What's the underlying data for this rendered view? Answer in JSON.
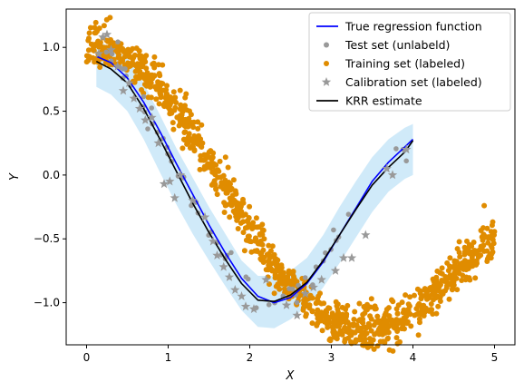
{
  "chart_data": {
    "type": "scatter",
    "xlabel": "X",
    "ylabel": "Y",
    "xlim": [
      -0.25,
      5.25
    ],
    "ylim": [
      -1.33,
      1.3
    ],
    "xticks": [
      0,
      1,
      2,
      3,
      4,
      5
    ],
    "yticks": [
      -1.0,
      -0.5,
      0.0,
      0.5,
      1.0
    ],
    "xtick_labels": [
      "0",
      "1",
      "2",
      "3",
      "4",
      "5"
    ],
    "ytick_labels": [
      "−1.0",
      "−0.5",
      "0.0",
      "0.5",
      "1.0"
    ],
    "grid": false,
    "legend": "top-right",
    "legend_entries": [
      {
        "label": "True regression function",
        "kind": "line",
        "color": "#0000ff"
      },
      {
        "label": "Test set (unlabeld)",
        "kind": "circle",
        "color": "#999999"
      },
      {
        "label": "Training set (labeled)",
        "kind": "circle",
        "color": "#e08c00"
      },
      {
        "label": "Calibration set (labeled)",
        "kind": "star",
        "color": "#999999"
      },
      {
        "label": "KRR estimate",
        "kind": "line",
        "color": "#000000"
      }
    ],
    "series": [
      {
        "name": "True regression function",
        "kind": "line",
        "color": "#0000ff",
        "x": [
          0.12,
          0.3,
          0.5,
          0.7,
          0.9,
          1.1,
          1.3,
          1.5,
          1.7,
          1.9,
          2.1,
          2.3,
          2.5,
          2.7,
          2.9,
          3.1,
          3.3,
          3.5,
          3.7,
          3.9,
          4.0
        ],
        "y": [
          0.93,
          0.88,
          0.76,
          0.57,
          0.34,
          0.09,
          -0.15,
          -0.39,
          -0.61,
          -0.81,
          -0.95,
          -1.0,
          -0.96,
          -0.85,
          -0.68,
          -0.47,
          -0.26,
          -0.05,
          0.1,
          0.22,
          0.28
        ]
      },
      {
        "name": "KRR estimate",
        "kind": "line",
        "color": "#000000",
        "x": [
          0.12,
          0.3,
          0.5,
          0.7,
          0.9,
          1.1,
          1.3,
          1.5,
          1.7,
          1.9,
          2.1,
          2.3,
          2.5,
          2.7,
          2.9,
          3.1,
          3.3,
          3.5,
          3.7,
          3.9,
          4.0
        ],
        "y": [
          0.89,
          0.83,
          0.72,
          0.52,
          0.28,
          0.03,
          -0.22,
          -0.45,
          -0.66,
          -0.85,
          -0.98,
          -0.99,
          -0.94,
          -0.84,
          -0.67,
          -0.47,
          -0.27,
          -0.08,
          0.06,
          0.18,
          0.27
        ]
      },
      {
        "name": "Prediction band",
        "kind": "band",
        "color": "#8fcdf0",
        "x": [
          0.12,
          0.3,
          0.5,
          0.7,
          0.9,
          1.1,
          1.3,
          1.5,
          1.7,
          1.9,
          2.1,
          2.3,
          2.5,
          2.7,
          2.9,
          3.1,
          3.3,
          3.5,
          3.7,
          3.9,
          4.0
        ],
        "lower": [
          0.69,
          0.63,
          0.5,
          0.28,
          0.02,
          -0.23,
          -0.46,
          -0.67,
          -0.87,
          -1.06,
          -1.19,
          -1.2,
          -1.13,
          -1.03,
          -0.88,
          -0.69,
          -0.49,
          -0.29,
          -0.13,
          -0.03,
          0.0
        ],
        "upper": [
          1.06,
          1.0,
          0.92,
          0.72,
          0.47,
          0.21,
          -0.02,
          -0.25,
          -0.46,
          -0.67,
          -0.79,
          -0.79,
          -0.75,
          -0.65,
          -0.47,
          -0.25,
          -0.05,
          0.14,
          0.28,
          0.37,
          0.4
        ]
      },
      {
        "name": "Calibration set (labeled)",
        "kind": "star",
        "color": "#999999",
        "x": [
          0.15,
          0.2,
          0.25,
          0.3,
          0.38,
          0.45,
          0.52,
          0.58,
          0.65,
          0.72,
          0.8,
          0.88,
          0.95,
          1.02,
          1.08,
          1.15,
          1.3,
          1.45,
          1.55,
          1.6,
          1.68,
          1.75,
          1.82,
          1.9,
          1.95,
          2.05,
          2.2,
          2.45,
          2.58,
          2.68,
          2.78,
          2.88,
          3.05,
          3.15,
          3.25,
          3.42,
          3.68,
          3.75,
          3.92
        ],
        "y": [
          0.95,
          1.08,
          1.1,
          0.98,
          0.85,
          0.66,
          0.72,
          0.6,
          0.52,
          0.43,
          0.45,
          0.25,
          -0.07,
          -0.05,
          -0.18,
          0.0,
          -0.2,
          -0.33,
          -0.52,
          -0.63,
          -0.72,
          -0.8,
          -0.9,
          -0.95,
          -1.03,
          -1.05,
          -0.82,
          -1.02,
          -1.1,
          -0.93,
          -0.88,
          -0.82,
          -0.75,
          -0.65,
          -0.65,
          -0.47,
          0.05,
          0.0,
          0.2
        ]
      }
    ],
    "scatter_specs": [
      {
        "name": "Training set (labeled)",
        "color": "#e08c00",
        "n": 1100,
        "x_range": [
          0.0,
          5.0
        ],
        "y_of_x": "cos(x)+0.1*x-0.05*x^2",
        "noise_sd": 0.08,
        "seed": 7
      },
      {
        "name": "Test set (unlabeld)",
        "color": "#999999",
        "n": 60,
        "x_range": [
          0.12,
          3.95
        ],
        "y_of_x": "true_function",
        "noise_sd": 0.06,
        "seed": 11
      }
    ]
  }
}
